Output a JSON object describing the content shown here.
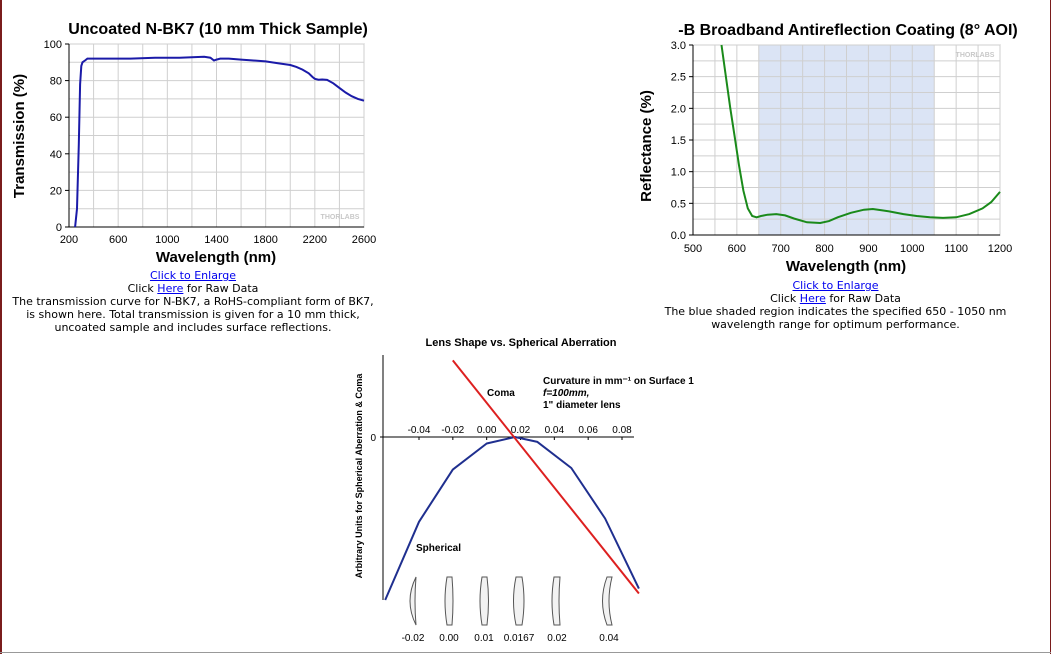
{
  "chart_data": [
    {
      "type": "line",
      "title": "Uncoated N-BK7 (10 mm Thick Sample)",
      "xlabel": "Wavelength (nm)",
      "ylabel": "Transmission (%)",
      "xlim": [
        200,
        2600
      ],
      "ylim": [
        0,
        100
      ],
      "xticks": [
        "200",
        "600",
        "1000",
        "1400",
        "1800",
        "2200",
        "2600"
      ],
      "yticks": [
        "0",
        "20",
        "40",
        "60",
        "80",
        "100"
      ],
      "watermark": "THORLABS",
      "grid": true,
      "series": [
        {
          "color": "#1a1aa8",
          "x": [
            250,
            265,
            280,
            290,
            300,
            310,
            330,
            350,
            400,
            500,
            700,
            900,
            1100,
            1200,
            1300,
            1350,
            1380,
            1400,
            1430,
            1450,
            1500,
            1600,
            1700,
            1800,
            1900,
            2000,
            2050,
            2100,
            2150,
            2180,
            2200,
            2230,
            2260,
            2300,
            2350,
            2400,
            2450,
            2500,
            2550,
            2600
          ],
          "y": [
            0,
            10,
            45,
            78,
            88,
            90,
            91,
            92,
            92,
            92,
            92,
            92.5,
            92.5,
            92.8,
            93,
            92.5,
            91,
            91.5,
            92,
            92,
            92,
            91.5,
            91,
            90.5,
            89.5,
            88.5,
            87.5,
            86,
            84,
            82,
            81,
            80.5,
            80.6,
            80.4,
            78.5,
            76,
            73.5,
            71.5,
            70,
            69
          ]
        }
      ]
    },
    {
      "type": "line",
      "title": "-B Broadband Antireflection Coating (8° AOI)",
      "xlabel": "Wavelength (nm)",
      "ylabel": "Reflectance (%)",
      "xlim": [
        500,
        1200
      ],
      "ylim": [
        0,
        3.0
      ],
      "xticks": [
        "500",
        "600",
        "700",
        "800",
        "900",
        "1000",
        "1100",
        "1200"
      ],
      "yticks": [
        "0.0",
        "0.5",
        "1.0",
        "1.5",
        "2.0",
        "2.5",
        "3.0"
      ],
      "shaded_region": [
        650,
        1050
      ],
      "watermark": "THORLABS",
      "grid": true,
      "series": [
        {
          "color": "#1a8a1a",
          "x": [
            565,
            575,
            585,
            595,
            605,
            615,
            625,
            635,
            645,
            655,
            670,
            690,
            710,
            730,
            760,
            790,
            810,
            830,
            860,
            890,
            910,
            930,
            950,
            980,
            1010,
            1040,
            1070,
            1100,
            1130,
            1160,
            1180,
            1200
          ],
          "y": [
            3.0,
            2.5,
            2.0,
            1.55,
            1.1,
            0.7,
            0.42,
            0.3,
            0.28,
            0.3,
            0.32,
            0.33,
            0.31,
            0.26,
            0.2,
            0.19,
            0.22,
            0.28,
            0.35,
            0.4,
            0.41,
            0.39,
            0.37,
            0.33,
            0.3,
            0.28,
            0.27,
            0.28,
            0.33,
            0.42,
            0.52,
            0.68
          ]
        }
      ]
    },
    {
      "type": "line",
      "title": "Lens Shape vs. Spherical Aberration",
      "ylabel": "Arbitrary Units for Spherical Aberration & Coma",
      "x_axis_ticks": [
        "-0.04",
        "-0.02",
        "0.00",
        "0.02",
        "0.04",
        "0.06",
        "0.08"
      ],
      "y_zero_label": "0",
      "annotation": "Curvature in mm⁻¹ on Surface 1",
      "annotation_f": "f=100mm,",
      "annotation_lens": "1\" diameter lens",
      "series_labels": [
        "Coma",
        "Spherical"
      ],
      "lens_labels": [
        "-0.02",
        "0.00",
        "0.01",
        "0.0167",
        "0.02",
        "0.04"
      ],
      "series": [
        {
          "name": "Spherical",
          "color": "#1f2f8f",
          "x": [
            -0.06,
            -0.04,
            -0.02,
            0.0,
            0.0167,
            0.03,
            0.05,
            0.07,
            0.09
          ],
          "y": [
            -1.0,
            -0.52,
            -0.2,
            -0.04,
            0.0,
            -0.03,
            -0.19,
            -0.5,
            -0.93
          ]
        },
        {
          "name": "Coma",
          "color": "#dd2020",
          "x": [
            -0.02,
            0.09
          ],
          "y": [
            0.47,
            -0.96
          ]
        }
      ]
    }
  ],
  "captions": {
    "left": {
      "enlarge": "Click to Enlarge",
      "raw_prefix": "Click ",
      "raw_link": "Here",
      "raw_suffix": " for Raw Data",
      "description": "The transmission curve for N-BK7, a RoHS-compliant form of BK7, is shown here. Total transmission is given for a 10 mm thick, uncoated sample and includes surface reflections."
    },
    "right": {
      "enlarge": "Click to Enlarge",
      "raw_prefix": "Click ",
      "raw_link": "Here",
      "raw_suffix": " for Raw Data",
      "description": "The blue shaded region indicates the specified 650 - 1050 nm wavelength range for optimum performance."
    }
  }
}
